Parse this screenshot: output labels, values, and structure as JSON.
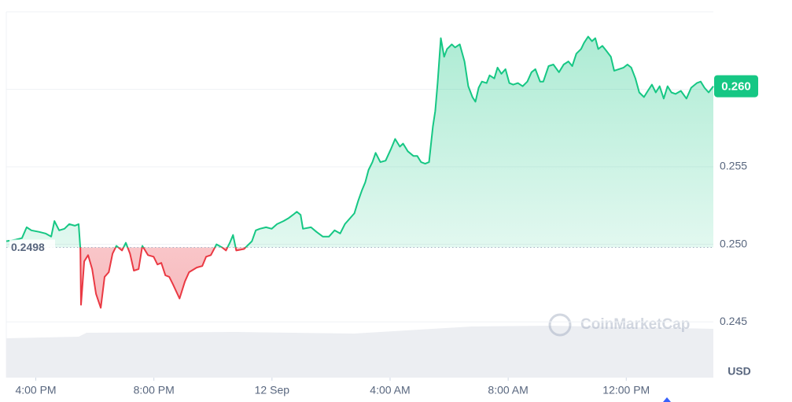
{
  "chart_data": {
    "type": "line",
    "x": [
      15.0,
      15.32,
      15.53,
      15.69,
      15.85,
      16.12,
      16.33,
      16.52,
      16.63,
      16.79,
      16.97,
      17.13,
      17.32,
      17.45,
      17.51,
      17.53,
      17.64,
      17.77,
      17.91,
      18.04,
      18.2,
      18.33,
      18.47,
      18.6,
      18.73,
      18.92,
      19.05,
      19.19,
      19.32,
      19.48,
      19.61,
      19.8,
      19.99,
      20.12,
      20.25,
      20.39,
      20.52,
      20.65,
      20.87,
      21.05,
      21.19,
      21.45,
      21.64,
      21.77,
      21.93,
      22.12,
      22.31,
      22.44,
      22.57,
      22.68,
      22.79,
      23.05,
      23.32,
      23.45,
      23.59,
      23.8,
      23.99,
      24.17,
      24.39,
      24.57,
      24.71,
      24.84,
      24.97,
      25.05,
      25.32,
      25.51,
      25.72,
      25.93,
      26.12,
      26.31,
      26.47,
      26.65,
      26.79,
      26.92,
      27.05,
      27.16,
      27.27,
      27.4,
      27.51,
      27.67,
      27.85,
      28.04,
      28.17,
      28.33,
      28.44,
      28.6,
      28.79,
      28.92,
      29.05,
      29.19,
      29.32,
      29.45,
      29.53,
      29.61,
      29.72,
      29.83,
      29.93,
      30.09,
      30.2,
      30.36,
      30.52,
      30.65,
      30.79,
      30.89,
      31.0,
      31.11,
      31.27,
      31.37,
      31.53,
      31.64,
      31.77,
      31.91,
      32.04,
      32.17,
      32.33,
      32.49,
      32.65,
      32.79,
      32.92,
      33.08,
      33.19,
      33.37,
      33.53,
      33.72,
      33.88,
      34.04,
      34.17,
      34.31,
      34.47,
      34.57,
      34.71,
      34.84,
      34.95,
      35.05,
      35.19,
      35.32,
      35.48,
      35.59,
      35.75,
      35.91,
      36.04,
      36.17,
      36.31,
      36.44,
      36.6,
      36.73,
      36.87,
      37.0,
      37.13,
      37.27,
      37.4,
      37.53,
      37.67,
      37.85,
      38.04,
      38.2,
      38.39,
      38.52,
      38.65,
      38.79,
      38.95
    ],
    "values": [
      0.2502,
      0.2503,
      0.2504,
      0.2511,
      0.2509,
      0.2508,
      0.2507,
      0.2505,
      0.2515,
      0.2509,
      0.251,
      0.2513,
      0.2512,
      0.2513,
      0.2497,
      0.2461,
      0.2489,
      0.2493,
      0.2484,
      0.2468,
      0.2459,
      0.2479,
      0.2482,
      0.2494,
      0.2499,
      0.2496,
      0.2501,
      0.2494,
      0.2483,
      0.2484,
      0.2499,
      0.2493,
      0.2492,
      0.2487,
      0.2488,
      0.248,
      0.2479,
      0.2474,
      0.2465,
      0.2476,
      0.2482,
      0.2485,
      0.2486,
      0.2492,
      0.2493,
      0.25,
      0.2498,
      0.2496,
      0.2501,
      0.2506,
      0.2496,
      0.2497,
      0.2502,
      0.2509,
      0.251,
      0.2511,
      0.251,
      0.2513,
      0.2515,
      0.2517,
      0.2519,
      0.2521,
      0.2519,
      0.251,
      0.2511,
      0.2508,
      0.2505,
      0.2505,
      0.2509,
      0.2507,
      0.2513,
      0.2517,
      0.252,
      0.2528,
      0.2535,
      0.254,
      0.2548,
      0.2553,
      0.2559,
      0.2553,
      0.2554,
      0.2562,
      0.2568,
      0.2563,
      0.2565,
      0.256,
      0.2557,
      0.2557,
      0.2553,
      0.2552,
      0.2553,
      0.2576,
      0.2586,
      0.2604,
      0.2633,
      0.2621,
      0.2626,
      0.2629,
      0.2627,
      0.2629,
      0.2618,
      0.2602,
      0.2595,
      0.2592,
      0.2601,
      0.2605,
      0.2604,
      0.2609,
      0.2607,
      0.2614,
      0.261,
      0.2613,
      0.2604,
      0.2603,
      0.2604,
      0.2602,
      0.2605,
      0.2611,
      0.2613,
      0.2605,
      0.2605,
      0.2615,
      0.2616,
      0.2611,
      0.2616,
      0.2618,
      0.2615,
      0.2623,
      0.2626,
      0.263,
      0.2634,
      0.2631,
      0.2633,
      0.2626,
      0.2628,
      0.2625,
      0.2621,
      0.2612,
      0.2613,
      0.2614,
      0.2616,
      0.2614,
      0.2607,
      0.2598,
      0.2595,
      0.2599,
      0.2603,
      0.2598,
      0.2602,
      0.2594,
      0.2602,
      0.2598,
      0.2597,
      0.2599,
      0.2594,
      0.2601,
      0.2604,
      0.2605,
      0.2601,
      0.2598,
      0.2602
    ],
    "color_up": "#16c784",
    "color_down": "#ea3943",
    "baseline": {
      "value": 0.2498,
      "label": "0.2498"
    },
    "last_price_label": "0.260",
    "currency": "USD",
    "watermark": "CoinMarketCap",
    "xlim": [
      15,
      38.95
    ],
    "ylim": [
      0.2414,
      0.265
    ],
    "xticks": [
      {
        "value": 16,
        "label": "4:00 PM"
      },
      {
        "value": 20,
        "label": "8:00 PM"
      },
      {
        "value": 24,
        "label": "12 Sep"
      },
      {
        "value": 28,
        "label": "4:00 AM"
      },
      {
        "value": 32,
        "label": "8:00 AM"
      },
      {
        "value": 36,
        "label": "12:00 PM"
      }
    ],
    "yticks": [
      0.245,
      {
        "value": 0.25,
        "label": "0.250"
      },
      0.255,
      0.26
    ],
    "grid": true
  }
}
